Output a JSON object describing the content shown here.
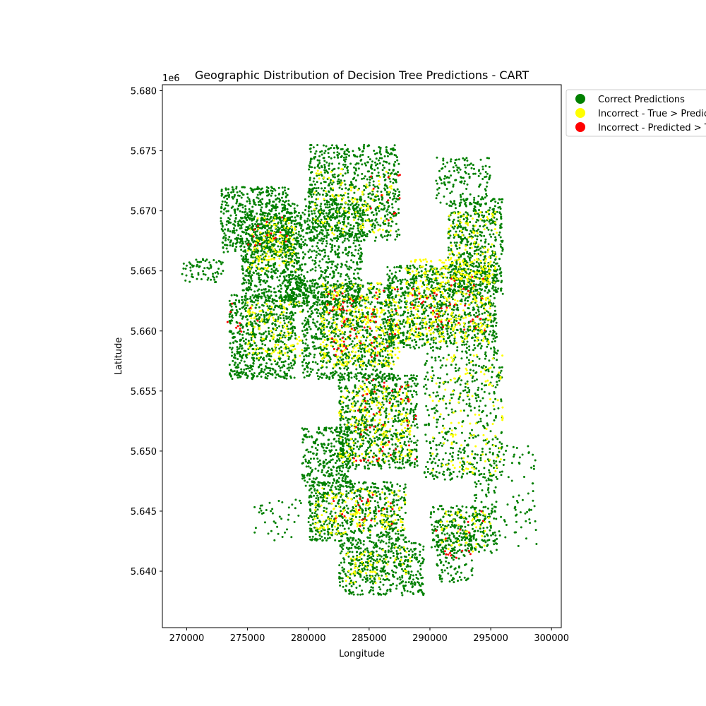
{
  "chart_data": {
    "type": "scatter",
    "title": "Geographic Distribution of Decision Tree Predictions - CART",
    "xlabel": "Longitude",
    "ylabel": "Latitude",
    "y_offset_label": "1e6",
    "xlim": [
      268000,
      300800
    ],
    "ylim": [
      5635300,
      5680500
    ],
    "x_ticks": [
      {
        "value": 270000,
        "label": "270000"
      },
      {
        "value": 275000,
        "label": "275000"
      },
      {
        "value": 280000,
        "label": "280000"
      },
      {
        "value": 285000,
        "label": "285000"
      },
      {
        "value": 290000,
        "label": "290000"
      },
      {
        "value": 295000,
        "label": "295000"
      },
      {
        "value": 300000,
        "label": "300000"
      }
    ],
    "y_ticks": [
      {
        "value": 5640000,
        "label": "5.640"
      },
      {
        "value": 5645000,
        "label": "5.645"
      },
      {
        "value": 5650000,
        "label": "5.650"
      },
      {
        "value": 5655000,
        "label": "5.655"
      },
      {
        "value": 5660000,
        "label": "5.660"
      },
      {
        "value": 5665000,
        "label": "5.665"
      },
      {
        "value": 5670000,
        "label": "5.670"
      },
      {
        "value": 5675000,
        "label": "5.675"
      },
      {
        "value": 5680000,
        "label": "5.680"
      }
    ],
    "legend_position": "outside-top-right",
    "series": [
      {
        "name": "Correct Predictions",
        "color": "#008000",
        "clusters": [
          {
            "x": [
              272800,
              278500
            ],
            "y": [
              5666500,
              5672000
            ],
            "density": 0.35
          },
          {
            "x": [
              274500,
              279500
            ],
            "y": [
              5662500,
              5669500
            ],
            "density": 0.35
          },
          {
            "x": [
              278000,
              284500
            ],
            "y": [
              5662000,
              5671000
            ],
            "density": 0.25
          },
          {
            "x": [
              280000,
              287500
            ],
            "y": [
              5667500,
              5675500
            ],
            "density": 0.25
          },
          {
            "x": [
              273500,
              279000
            ],
            "y": [
              5656000,
              5663000
            ],
            "density": 0.35
          },
          {
            "x": [
              279500,
              287000
            ],
            "y": [
              5656000,
              5664000
            ],
            "density": 0.3
          },
          {
            "x": [
              286500,
              295500
            ],
            "y": [
              5658500,
              5665500
            ],
            "density": 0.3
          },
          {
            "x": [
              291500,
              296000
            ],
            "y": [
              5663000,
              5671000
            ],
            "density": 0.3
          },
          {
            "x": [
              282500,
              289000
            ],
            "y": [
              5648500,
              5656500
            ],
            "density": 0.3
          },
          {
            "x": [
              279500,
              283500
            ],
            "y": [
              5647000,
              5652000
            ],
            "density": 0.3
          },
          {
            "x": [
              280000,
              288000
            ],
            "y": [
              5642500,
              5647500
            ],
            "density": 0.3
          },
          {
            "x": [
              290000,
              295500
            ],
            "y": [
              5641500,
              5645500
            ],
            "density": 0.25
          },
          {
            "x": [
              282500,
              289500
            ],
            "y": [
              5638000,
              5642500
            ],
            "density": 0.3
          },
          {
            "x": [
              290500,
              293500
            ],
            "y": [
              5639000,
              5643000
            ],
            "density": 0.2
          },
          {
            "x": [
              289500,
              296000
            ],
            "y": [
              5647500,
              5658500
            ],
            "density": 0.12
          },
          {
            "x": [
              293500,
              299000
            ],
            "y": [
              5642000,
              5650500
            ],
            "density": 0.06
          },
          {
            "x": [
              275500,
              279500
            ],
            "y": [
              5642500,
              5646000
            ],
            "density": 0.06
          },
          {
            "x": [
              269500,
              273000
            ],
            "y": [
              5664000,
              5666000
            ],
            "density": 0.2
          },
          {
            "x": [
              290500,
              295000
            ],
            "y": [
              5670500,
              5674500
            ],
            "density": 0.15
          }
        ]
      },
      {
        "name": "Incorrect - True > Predicted",
        "color": "#ffff00",
        "clusters": [
          {
            "x": [
              275000,
              279000
            ],
            "y": [
              5665000,
              5669500
            ],
            "density": 0.12
          },
          {
            "x": [
              281000,
              287500
            ],
            "y": [
              5657000,
              5664000
            ],
            "density": 0.14
          },
          {
            "x": [
              288000,
              295000
            ],
            "y": [
              5659000,
              5666000
            ],
            "density": 0.14
          },
          {
            "x": [
              291500,
              295500
            ],
            "y": [
              5664000,
              5670000
            ],
            "density": 0.1
          },
          {
            "x": [
              275000,
              279500
            ],
            "y": [
              5657500,
              5662500
            ],
            "density": 0.1
          },
          {
            "x": [
              282500,
              288500
            ],
            "y": [
              5649000,
              5655500
            ],
            "density": 0.1
          },
          {
            "x": [
              280500,
              288000
            ],
            "y": [
              5643000,
              5647000
            ],
            "density": 0.1
          },
          {
            "x": [
              283000,
              288500
            ],
            "y": [
              5639000,
              5642000
            ],
            "density": 0.08
          },
          {
            "x": [
              290500,
              295000
            ],
            "y": [
              5641500,
              5645000
            ],
            "density": 0.06
          },
          {
            "x": [
              280500,
              287000
            ],
            "y": [
              5668000,
              5673500
            ],
            "density": 0.06
          },
          {
            "x": [
              290000,
              296000
            ],
            "y": [
              5648000,
              5658000
            ],
            "density": 0.04
          }
        ]
      },
      {
        "name": "Incorrect - Predicted > True",
        "color": "#ff0000",
        "clusters": [
          {
            "x": [
              275000,
              278500
            ],
            "y": [
              5667000,
              5670000
            ],
            "density": 0.03
          },
          {
            "x": [
              281500,
              287500
            ],
            "y": [
              5657500,
              5663500
            ],
            "density": 0.035
          },
          {
            "x": [
              288500,
              294500
            ],
            "y": [
              5660000,
              5664500
            ],
            "density": 0.035
          },
          {
            "x": [
              283500,
              289000
            ],
            "y": [
              5649000,
              5656000
            ],
            "density": 0.025
          },
          {
            "x": [
              281500,
              287000
            ],
            "y": [
              5643500,
              5646500
            ],
            "density": 0.025
          },
          {
            "x": [
              290500,
              294500
            ],
            "y": [
              5641000,
              5645000
            ],
            "density": 0.02
          },
          {
            "x": [
              285000,
              288000
            ],
            "y": [
              5669000,
              5673000
            ],
            "density": 0.02
          },
          {
            "x": [
              273000,
              276500
            ],
            "y": [
              5659500,
              5662500
            ],
            "density": 0.02
          }
        ]
      }
    ]
  }
}
